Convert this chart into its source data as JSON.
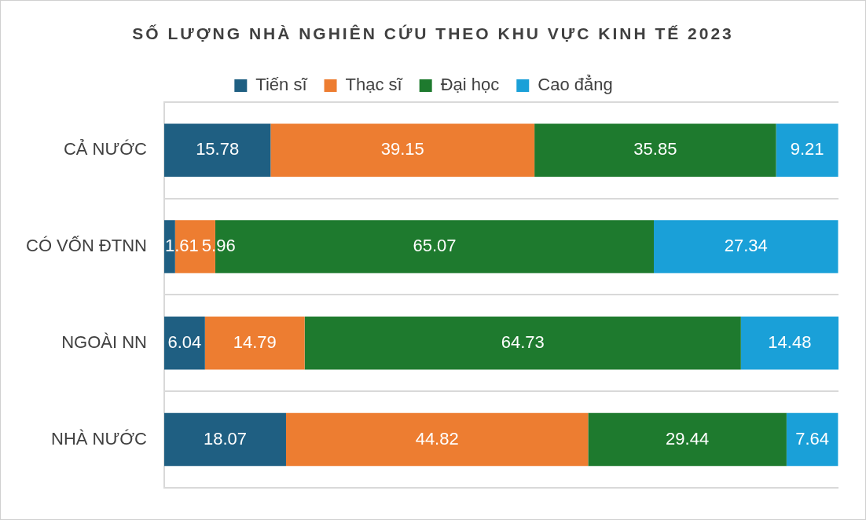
{
  "chart_data": {
    "type": "bar",
    "title": "SỐ LƯỢNG NHÀ NGHIÊN CỨU THEO KHU VỰC KINH TẾ 2023",
    "orientation": "horizontal",
    "stacked": true,
    "data_labels": true,
    "legend": "top",
    "grid": "y",
    "tick_labels": "y",
    "xlim": [
      0,
      100.04
    ],
    "categories": [
      "CẢ NƯỚC",
      "CÓ VỐN ĐTNN",
      "NGOÀI NN",
      "NHÀ NƯỚC"
    ],
    "series": [
      {
        "name": "Tiến sĩ",
        "color": "#1f5f82",
        "values": [
          15.78,
          1.61,
          6.04,
          18.07
        ]
      },
      {
        "name": "Thạc sĩ",
        "color": "#ed7d31",
        "values": [
          39.15,
          5.96,
          14.79,
          44.82
        ]
      },
      {
        "name": "Đại học",
        "color": "#1e7a2e",
        "values": [
          35.85,
          65.07,
          64.73,
          29.44
        ]
      },
      {
        "name": "Cao đẳng",
        "color": "#1aa0d8",
        "values": [
          9.21,
          27.34,
          14.48,
          7.64
        ]
      }
    ]
  }
}
